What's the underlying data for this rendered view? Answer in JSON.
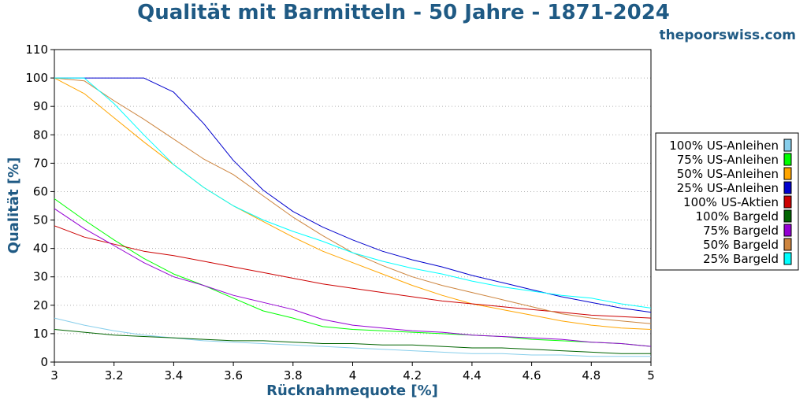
{
  "chart_data": {
    "type": "line",
    "title": "Qualität mit Barmitteln - 50 Jahre - 1871-2024",
    "source": "thepoorswiss.com",
    "xlabel": "Rücknahmequote [%]",
    "ylabel": "Qualität [%]",
    "xlim": [
      3,
      5
    ],
    "ylim": [
      0,
      110
    ],
    "xticks": [
      "3",
      "3.2",
      "3.4",
      "3.6",
      "3.8",
      "4",
      "4.2",
      "4.4",
      "4.6",
      "4.8",
      "5"
    ],
    "yticks": [
      "0",
      "10",
      "20",
      "30",
      "40",
      "50",
      "60",
      "70",
      "80",
      "90",
      "100",
      "110"
    ],
    "grid": "horizontal-dotted",
    "legend_position": "right",
    "x": [
      3.0,
      3.1,
      3.2,
      3.3,
      3.4,
      3.5,
      3.6,
      3.7,
      3.8,
      3.9,
      4.0,
      4.1,
      4.2,
      4.3,
      4.4,
      4.5,
      4.6,
      4.7,
      4.8,
      4.9,
      5.0
    ],
    "series": [
      {
        "name": "100% US-Anleihen",
        "color": "#87ceeb",
        "values": [
          15.5,
          13,
          11,
          9.5,
          8.5,
          7.5,
          7,
          6.5,
          6,
          5.5,
          5,
          4.5,
          4,
          3.5,
          3,
          3,
          2.5,
          2.5,
          2,
          2,
          2
        ]
      },
      {
        "name": "75% US-Anleihen",
        "color": "#00ff00",
        "values": [
          57.5,
          50,
          43,
          36.5,
          31,
          27,
          22.5,
          18,
          15.5,
          12.5,
          11.5,
          11,
          10.5,
          10,
          9.5,
          9,
          8,
          7.5,
          7,
          6.5,
          5.5
        ]
      },
      {
        "name": "50% US-Anleihen",
        "color": "#ffa500",
        "values": [
          100,
          94.5,
          86,
          77.5,
          69.5,
          61.5,
          55,
          49.5,
          44,
          39,
          35,
          31,
          27,
          23.5,
          20.5,
          18.5,
          16.5,
          14.5,
          13,
          12,
          11.5
        ]
      },
      {
        "name": "25% US-Anleihen",
        "color": "#0000cd",
        "values": [
          100,
          100,
          100,
          100,
          95,
          84,
          71,
          60.5,
          53,
          47.5,
          43,
          39,
          36,
          33.5,
          30.5,
          28,
          25.5,
          23,
          21,
          19,
          17.5
        ]
      },
      {
        "name": "100% US-Aktien",
        "color": "#cc0000",
        "values": [
          48,
          44,
          41.5,
          39,
          37.5,
          35.5,
          33.5,
          31.5,
          29.5,
          27.5,
          26,
          24.5,
          23,
          21.5,
          20.5,
          19.5,
          18.5,
          17.5,
          16.5,
          16,
          15.5
        ]
      },
      {
        "name": "100% Bargeld",
        "color": "#006400",
        "values": [
          11.5,
          10.5,
          9.5,
          9,
          8.5,
          8,
          7.5,
          7.5,
          7,
          6.5,
          6.5,
          6,
          6,
          5.5,
          5,
          5,
          4.5,
          4,
          3.5,
          3,
          3
        ]
      },
      {
        "name": "75% Bargeld",
        "color": "#9400d3",
        "values": [
          54,
          47,
          41,
          35,
          30,
          27,
          23.5,
          21,
          18.5,
          15,
          13,
          12,
          11,
          10.5,
          9.5,
          9,
          8.5,
          8,
          7,
          6.5,
          5.5
        ]
      },
      {
        "name": "50% Bargeld",
        "color": "#cd853f",
        "values": [
          100,
          99,
          92,
          85.5,
          78.5,
          71.5,
          66,
          58.5,
          51,
          44.5,
          38.5,
          34,
          30,
          27,
          24.5,
          22,
          19.5,
          17,
          15.5,
          14.5,
          13.5
        ]
      },
      {
        "name": "25% Bargeld",
        "color": "#00ffff",
        "values": [
          100,
          100,
          91,
          80,
          69.5,
          61.5,
          55,
          50,
          46,
          42.5,
          38.5,
          35.5,
          33,
          31,
          28.5,
          26.5,
          25,
          23.5,
          22.5,
          20.5,
          19
        ]
      }
    ]
  }
}
